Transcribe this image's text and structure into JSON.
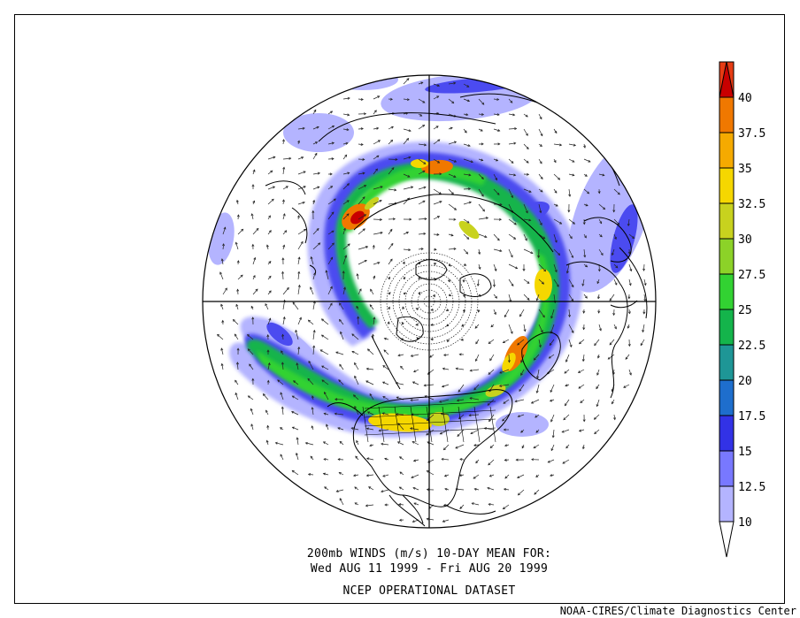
{
  "caption": {
    "line1": "200mb WINDS (m/s)   10-DAY MEAN FOR:",
    "line2": "Wed AUG 11 1999 - Fri AUG 20 1999",
    "line3": "NCEP OPERATIONAL DATASET"
  },
  "credit": "NOAA-CIRES/Climate Diagnostics Center",
  "colorbar": {
    "labels": [
      "40",
      "37.5",
      "35",
      "32.5",
      "30",
      "27.5",
      "25",
      "22.5",
      "20",
      "17.5",
      "15",
      "12.5",
      "10"
    ],
    "colors": [
      "#ffffff",
      "#b4b4ff",
      "#7878ff",
      "#3232e6",
      "#1e6ecd",
      "#1e9696",
      "#14b44b",
      "#32d232",
      "#8cd228",
      "#c8d21e",
      "#f5d700",
      "#f5aa00",
      "#f07800",
      "#e63c14",
      "#c80000"
    ]
  },
  "map": {
    "projection": "polar-stereographic-north",
    "colors": {
      "c10": "#b4b4ff",
      "c15": "#4b4bf0",
      "c20": "#1e80c0",
      "c22": "#14b44b",
      "c25": "#32d232",
      "c30": "#c8d21e",
      "c35": "#f5d700",
      "c375": "#f07800",
      "c40": "#c80000",
      "coast": "#000000"
    }
  }
}
